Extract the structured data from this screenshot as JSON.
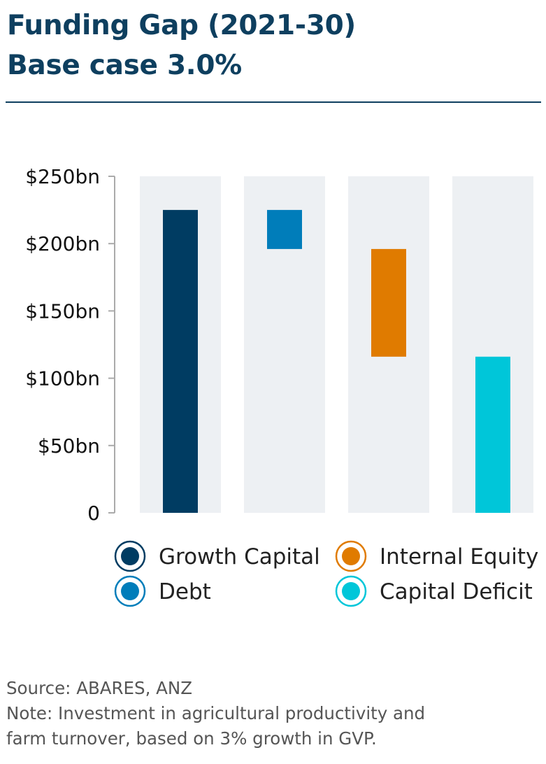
{
  "title": [
    "Funding Gap (2021-30)",
    "Base case 3.0%"
  ],
  "colors": {
    "title": "#0e3f5f",
    "background_band": "#edf0f3",
    "axis": "#aaaaaa",
    "growth_capital": "#003c62",
    "debt": "#007dba",
    "internal_equity": "#e07b00",
    "capital_deficit": "#00c6d9"
  },
  "chart_data": {
    "type": "bar",
    "subtype": "waterfall",
    "categories": [
      "Growth Capital",
      "Debt",
      "Internal Equity",
      "Capital Deficit"
    ],
    "bars": [
      {
        "name": "Growth Capital",
        "start": 0,
        "end": 225,
        "color": "#003c62"
      },
      {
        "name": "Debt",
        "start": 196,
        "end": 225,
        "color": "#007dba"
      },
      {
        "name": "Internal Equity",
        "start": 116,
        "end": 196,
        "color": "#e07b00"
      },
      {
        "name": "Capital Deficit",
        "start": 0,
        "end": 116,
        "color": "#00c6d9"
      }
    ],
    "yticks": [
      {
        "value": 250,
        "label": "$250bn"
      },
      {
        "value": 200,
        "label": "$200bn"
      },
      {
        "value": 150,
        "label": "$150bn"
      },
      {
        "value": 100,
        "label": "$100bn"
      },
      {
        "value": 50,
        "label": "$50bn"
      },
      {
        "value": 0,
        "label": "0"
      }
    ],
    "ylim": [
      0,
      250
    ],
    "grid": false,
    "legend": {
      "placement": "bottom",
      "entries": [
        {
          "label": "Growth Capital",
          "color": "#003c62"
        },
        {
          "label": "Internal Equity",
          "color": "#e07b00"
        },
        {
          "label": "Debt",
          "color": "#007dba"
        },
        {
          "label": "Capital Deficit",
          "color": "#00c6d9"
        }
      ]
    }
  },
  "footer": {
    "source": "Source: ABARES, ANZ",
    "note_line1": "Note: Investment in agricultural productivity and",
    "note_line2": "farm turnover, based on 3% growth in GVP."
  }
}
